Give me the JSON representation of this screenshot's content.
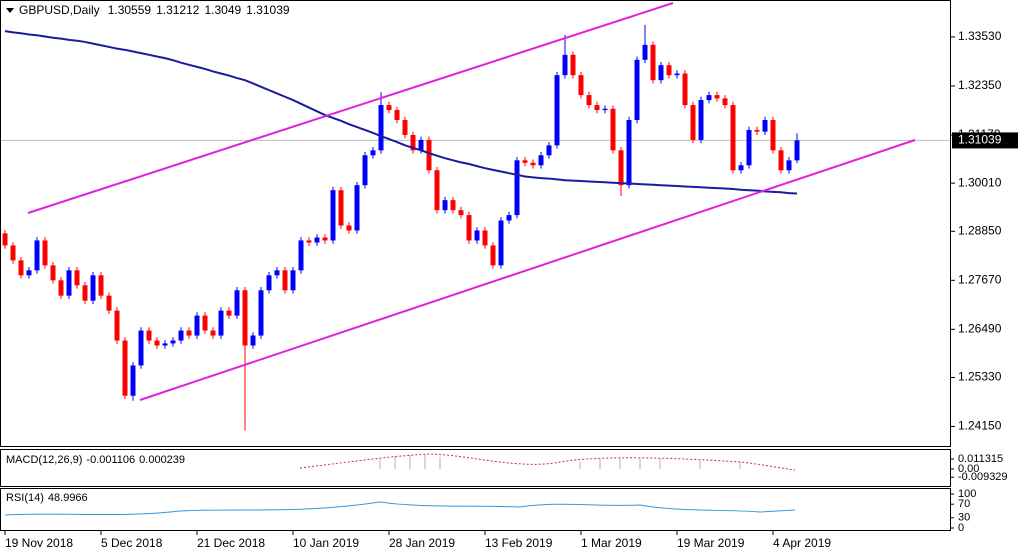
{
  "header": {
    "symbol": "GBPUSD,Daily"
  },
  "chart_data": {
    "type": "candlestick",
    "categories": [
      "19 Nov 2018",
      null,
      null,
      null,
      null,
      null,
      null,
      null,
      null,
      null,
      null,
      null,
      "5 Dec 2018",
      null,
      null,
      null,
      null,
      null,
      null,
      null,
      null,
      null,
      null,
      null,
      "21 Dec 2018",
      null,
      null,
      null,
      null,
      null,
      null,
      null,
      null,
      null,
      null,
      null,
      "10 Jan 2019",
      null,
      null,
      null,
      null,
      null,
      null,
      null,
      null,
      null,
      null,
      null,
      "28 Jan 2019",
      null,
      null,
      null,
      null,
      null,
      null,
      null,
      null,
      null,
      null,
      null,
      "13 Feb 2019",
      null,
      null,
      null,
      null,
      null,
      null,
      null,
      null,
      null,
      null,
      null,
      "1 Mar 2019",
      null,
      null,
      null,
      null,
      null,
      null,
      null,
      null,
      null,
      null,
      null,
      "19 Mar 2019",
      null,
      null,
      null,
      null,
      null,
      null,
      null,
      null,
      null,
      null,
      null,
      "4 Apr 2019",
      null,
      null,
      null
    ],
    "open": [
      1.288,
      1.2851,
      1.2815,
      1.2779,
      1.2791,
      1.2863,
      1.2803,
      1.2767,
      1.273,
      1.2791,
      1.2755,
      1.2718,
      1.2779,
      1.273,
      1.2694,
      1.2622,
      1.2489,
      1.2562,
      1.2646,
      1.2622,
      1.261,
      1.2615,
      1.2622,
      1.2646,
      1.2634,
      1.2682,
      1.2646,
      1.2634,
      1.2694,
      1.2682,
      1.2743,
      1.261,
      1.2634,
      1.2743,
      1.2779,
      1.2791,
      1.2743,
      1.2791,
      1.2863,
      1.2858,
      1.287,
      1.2863,
      1.2984,
      1.2899,
      1.2887,
      1.2996,
      1.3068,
      1.308,
      1.3189,
      1.3177,
      1.3153,
      1.3117,
      1.308,
      1.3105,
      1.3032,
      1.2936,
      1.296,
      1.2936,
      1.2924,
      1.2863,
      1.2887,
      1.2851,
      1.2803,
      1.2911,
      1.2924,
      1.3056,
      1.305,
      1.3044,
      1.3068,
      1.3092,
      1.3261,
      1.331,
      1.3261,
      1.3213,
      1.3189,
      1.3177,
      1.318,
      1.308,
      1.2996,
      1.3153,
      1.3298,
      1.3334,
      1.3249,
      1.3285,
      1.3261,
      1.3265,
      1.3189,
      1.3105,
      1.3201,
      1.3213,
      1.3205,
      1.3189,
      1.3032,
      1.3044,
      1.3129,
      1.3125,
      1.3153,
      1.308,
      1.3032,
      1.30559
    ],
    "high": [
      1.2888,
      1.2859,
      1.2823,
      1.2799,
      1.2871,
      1.2871,
      1.2811,
      1.2775,
      1.2799,
      1.2799,
      1.2763,
      1.2787,
      1.2787,
      1.2738,
      1.2702,
      1.263,
      1.257,
      1.2654,
      1.2654,
      1.263,
      1.2623,
      1.263,
      1.2654,
      1.2654,
      1.269,
      1.269,
      1.2654,
      1.2702,
      1.2702,
      1.2751,
      1.2751,
      1.2642,
      1.2751,
      1.2787,
      1.2799,
      1.2799,
      1.2799,
      1.2871,
      1.2871,
      1.2878,
      1.2878,
      1.2992,
      1.2992,
      1.2907,
      1.3004,
      1.3076,
      1.3088,
      1.322,
      1.3197,
      1.3185,
      1.3161,
      1.3125,
      1.3113,
      1.3113,
      1.304,
      1.2968,
      1.2968,
      1.2944,
      1.2932,
      1.2895,
      1.2895,
      1.2859,
      1.2919,
      1.2932,
      1.3064,
      1.3064,
      1.3058,
      1.3076,
      1.31,
      1.3269,
      1.3358,
      1.3318,
      1.3269,
      1.3221,
      1.3197,
      1.3188,
      1.3188,
      1.3088,
      1.3161,
      1.3306,
      1.3382,
      1.3342,
      1.3293,
      1.3293,
      1.3273,
      1.3273,
      1.3197,
      1.3209,
      1.3221,
      1.3221,
      1.3213,
      1.3197,
      1.3052,
      1.3137,
      1.3137,
      1.3161,
      1.3161,
      1.3088,
      1.3064,
      1.31212
    ],
    "low": [
      1.2843,
      1.2807,
      1.2771,
      1.2771,
      1.2783,
      1.2795,
      1.2759,
      1.2722,
      1.2722,
      1.2747,
      1.271,
      1.271,
      1.2722,
      1.2686,
      1.2614,
      1.2481,
      1.2477,
      1.2554,
      1.2614,
      1.2602,
      1.2602,
      1.2607,
      1.2614,
      1.2626,
      1.2626,
      1.2638,
      1.2626,
      1.2626,
      1.2674,
      1.2674,
      1.2405,
      1.2602,
      1.2626,
      1.2735,
      1.2771,
      1.2735,
      1.2735,
      1.2783,
      1.285,
      1.285,
      1.2855,
      1.2855,
      1.2891,
      1.2879,
      1.2879,
      1.2988,
      1.306,
      1.3072,
      1.3169,
      1.3145,
      1.3109,
      1.3072,
      1.3072,
      1.3024,
      1.2928,
      1.2928,
      1.2928,
      1.2916,
      1.2855,
      1.2855,
      1.2843,
      1.2795,
      1.2795,
      1.2903,
      1.2916,
      1.3042,
      1.3036,
      1.3036,
      1.306,
      1.3084,
      1.3253,
      1.3253,
      1.3205,
      1.3181,
      1.3169,
      1.3169,
      1.3072,
      1.297,
      1.2988,
      1.3145,
      1.329,
      1.3241,
      1.3241,
      1.3253,
      1.3253,
      1.3181,
      1.3097,
      1.3097,
      1.3193,
      1.3197,
      1.3181,
      1.3024,
      1.3024,
      1.3036,
      1.3117,
      1.3117,
      1.3072,
      1.3024,
      1.3024,
      1.3049
    ],
    "close": [
      1.2851,
      1.2815,
      1.2779,
      1.2791,
      1.2863,
      1.2803,
      1.2767,
      1.273,
      1.2791,
      1.2755,
      1.2718,
      1.2779,
      1.273,
      1.2694,
      1.2622,
      1.2489,
      1.2562,
      1.2646,
      1.2622,
      1.261,
      1.2615,
      1.2622,
      1.2646,
      1.2634,
      1.2682,
      1.2646,
      1.2634,
      1.2694,
      1.2682,
      1.2743,
      1.261,
      1.2634,
      1.2743,
      1.2779,
      1.2791,
      1.2743,
      1.2791,
      1.2863,
      1.2858,
      1.287,
      1.2863,
      1.2984,
      1.2899,
      1.2887,
      1.2996,
      1.3068,
      1.308,
      1.3189,
      1.3177,
      1.3153,
      1.3117,
      1.308,
      1.3105,
      1.3032,
      1.2936,
      1.296,
      1.2936,
      1.2924,
      1.2863,
      1.2887,
      1.2851,
      1.2803,
      1.2911,
      1.2924,
      1.3056,
      1.305,
      1.3044,
      1.3068,
      1.3092,
      1.3261,
      1.331,
      1.3261,
      1.3213,
      1.3189,
      1.3177,
      1.318,
      1.308,
      1.2996,
      1.3153,
      1.3298,
      1.3334,
      1.3249,
      1.3285,
      1.3261,
      1.3265,
      1.3189,
      1.3105,
      1.3201,
      1.3213,
      1.3205,
      1.3189,
      1.3032,
      1.3044,
      1.3129,
      1.3125,
      1.3153,
      1.308,
      1.3032,
      1.30559,
      1.31039
    ],
    "up_color": "#0000ff",
    "down_color": "#ff0000",
    "ma": {
      "color": "#1a1aa0",
      "values": [
        1.3367,
        1.3364,
        1.3362,
        1.3359,
        1.3357,
        1.3354,
        1.3351,
        1.3349,
        1.3346,
        1.3344,
        1.3341,
        1.3337,
        1.3333,
        1.3329,
        1.3325,
        1.3322,
        1.3318,
        1.3314,
        1.331,
        1.3306,
        1.3302,
        1.3297,
        1.3291,
        1.3286,
        1.3281,
        1.3276,
        1.327,
        1.3265,
        1.326,
        1.3254,
        1.3249,
        1.3241,
        1.3233,
        1.3225,
        1.3217,
        1.3209,
        1.3201,
        1.3192,
        1.3183,
        1.3174,
        1.3165,
        1.3158,
        1.3151,
        1.3143,
        1.3136,
        1.3129,
        1.3122,
        1.3114,
        1.3107,
        1.31,
        1.3092,
        1.3086,
        1.308,
        1.3073,
        1.3067,
        1.3061,
        1.3056,
        1.3051,
        1.3047,
        1.3042,
        1.3037,
        1.3033,
        1.3029,
        1.3025,
        1.3021,
        1.3017,
        1.3015,
        1.3013,
        1.3012,
        1.301,
        1.3008,
        1.3007,
        1.3006,
        1.3005,
        1.3004,
        1.3003,
        1.3002,
        1.3001,
        1.3,
        1.2999,
        1.2998,
        1.2997,
        1.2996,
        1.2995,
        1.2994,
        1.2993,
        1.2992,
        1.2991,
        1.299,
        1.2989,
        1.2988,
        1.2987,
        1.2985,
        1.2984,
        1.2983,
        1.2981,
        1.298,
        1.2979,
        1.2977,
        1.2976
      ]
    },
    "ylim": [
      1.2368,
      1.3442
    ],
    "yticks": [
      {
        "value": 1.3353,
        "label": "1.33530"
      },
      {
        "value": 1.3235,
        "label": "1.32350"
      },
      {
        "value": 1.3117,
        "label": "1.31170"
      },
      {
        "value": 1.3001,
        "label": "1.30010"
      },
      {
        "value": 1.2885,
        "label": "1.28850"
      },
      {
        "value": 1.2767,
        "label": "1.27670"
      },
      {
        "value": 1.2649,
        "label": "1.26490"
      },
      {
        "value": 1.2533,
        "label": "1.25330"
      },
      {
        "value": 1.2415,
        "label": "1.24150"
      }
    ]
  },
  "macd": {
    "label": "MACD(12,26,9)",
    "main": -0.001106,
    "signal": 0.000239,
    "yticks": [
      0.011315,
      {
        "value": 0,
        "label": "0.00"
      },
      -0.009329
    ]
  },
  "rsi": {
    "label": "RSI(14)",
    "value": 48.9966,
    "yticks": [
      100,
      70,
      30,
      0
    ]
  }
}
